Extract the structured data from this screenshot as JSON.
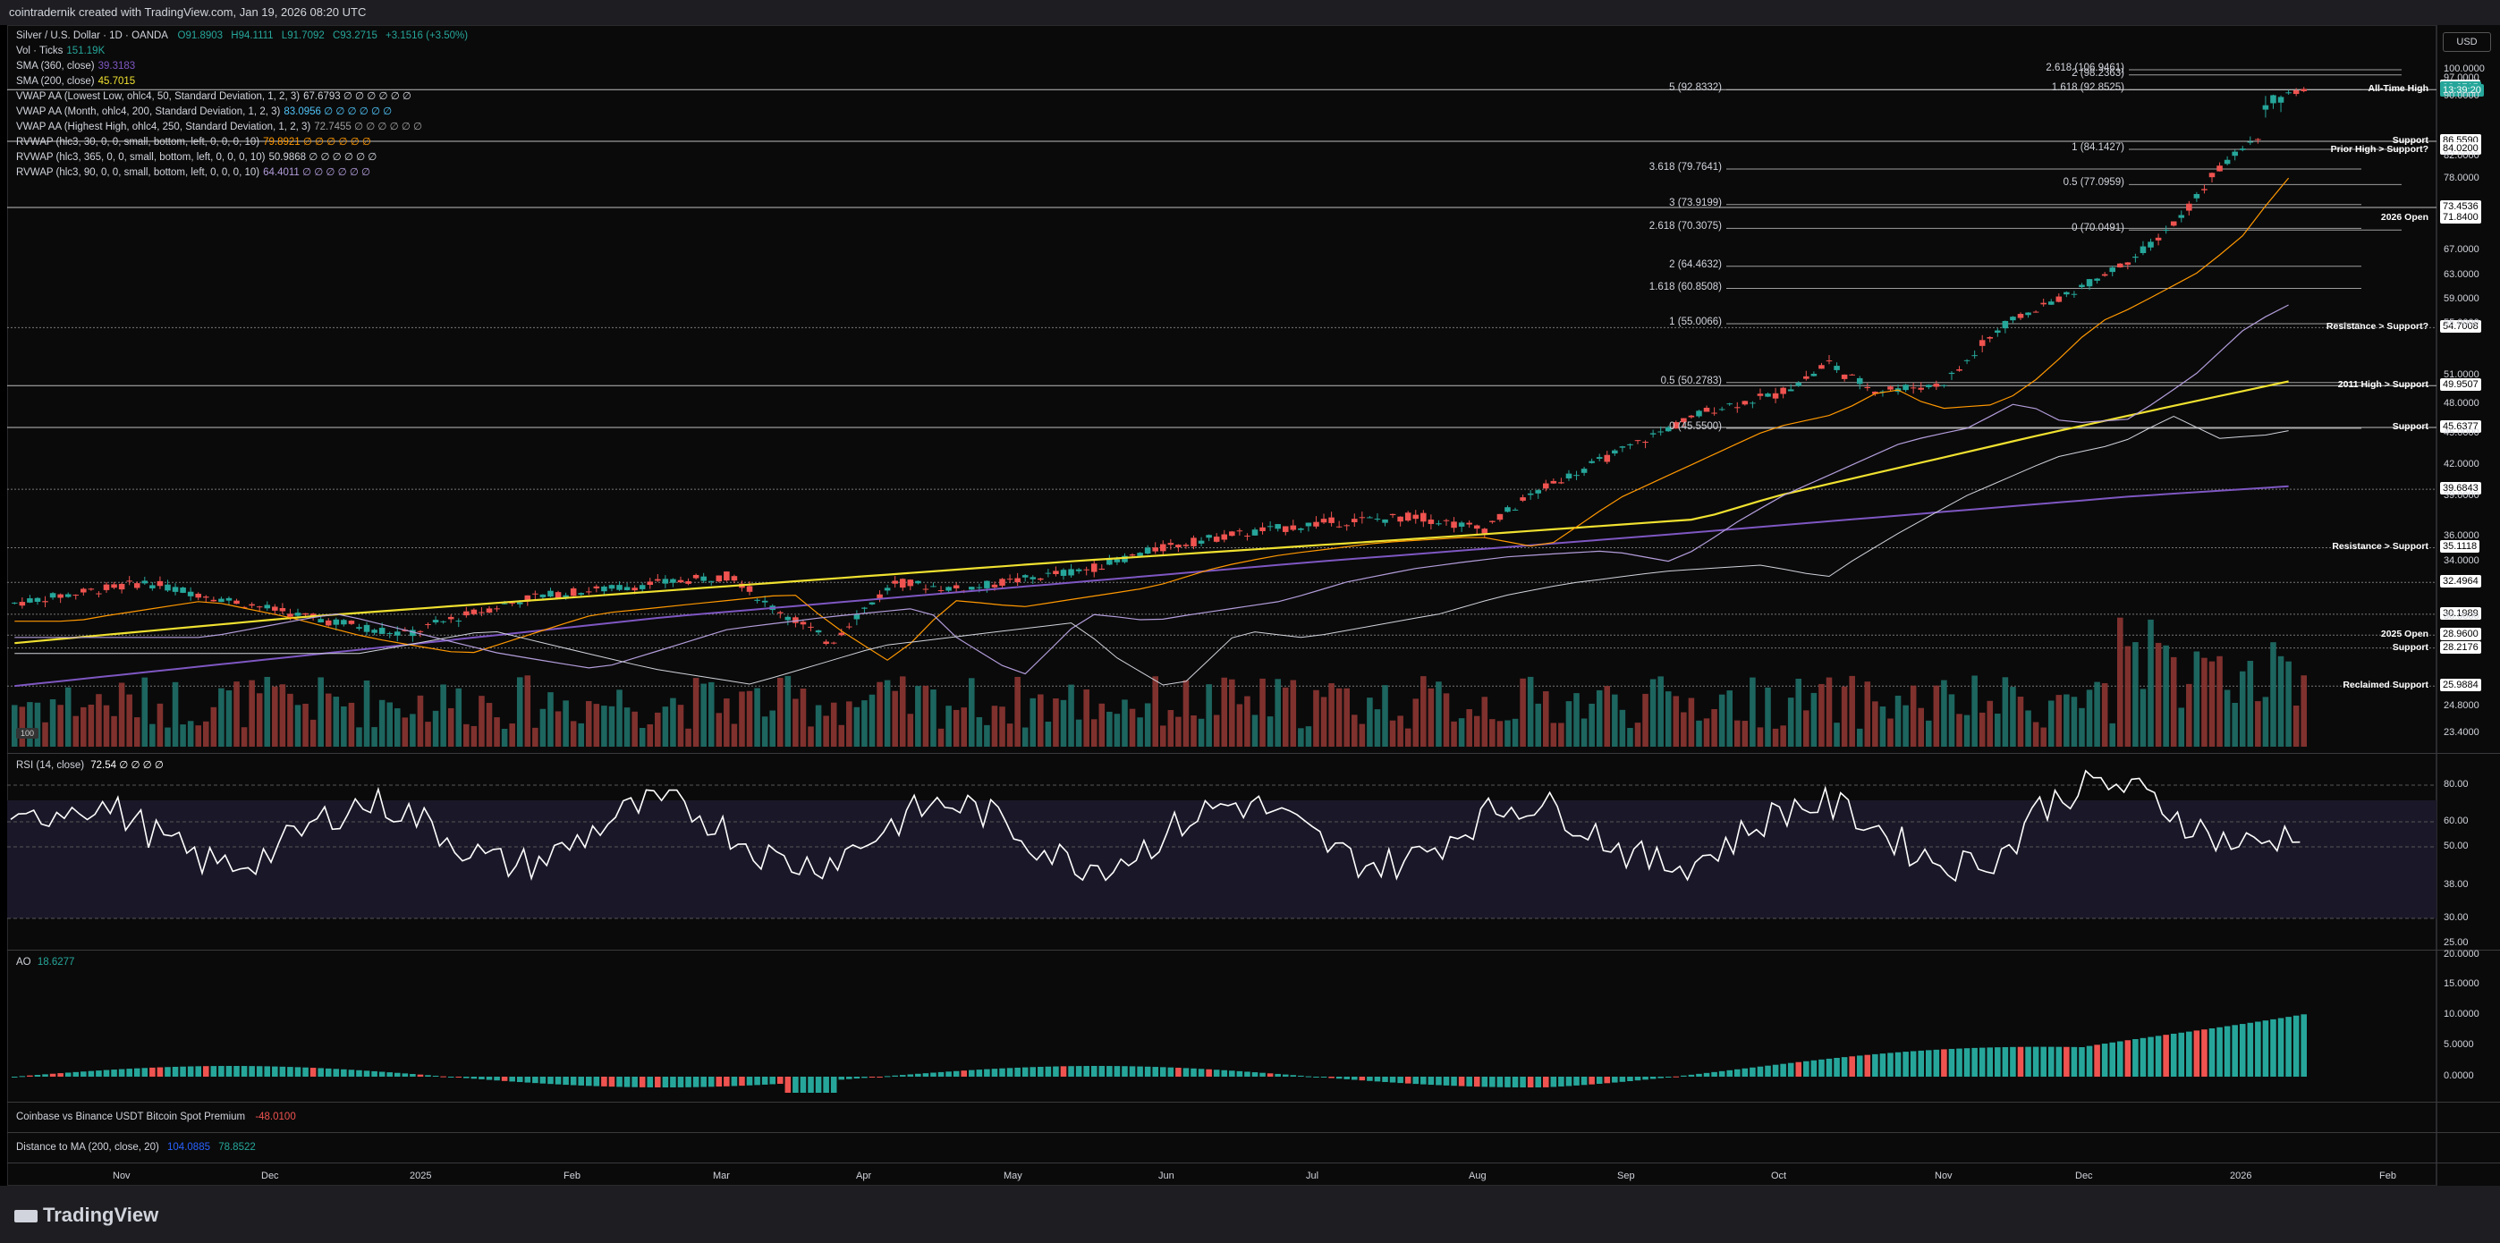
{
  "header": {
    "title": "cointradernik created with TradingView.com, Jan 19, 2026 08:20 UTC"
  },
  "symbol": {
    "name": "Silver / U.S. Dollar · 1D · OANDA",
    "open": "O91.8903",
    "high": "H94.1111",
    "low": "L91.7092",
    "close": "C93.2715",
    "change": "+3.1516 (+3.50%)"
  },
  "indicators": [
    {
      "label": "Vol · Ticks",
      "value": "151.19K",
      "color": "#26a69a"
    },
    {
      "label": "SMA (360, close)",
      "value": "39.3183",
      "color": "#7e57c2"
    },
    {
      "label": "SMA (200, close)",
      "value": "45.7015",
      "color": "#f0e130"
    },
    {
      "label": "VWAP AA (Lowest Low, ohlc4, 50, Standard Deviation, 1, 2, 3)",
      "value": "67.6793 ∅ ∅ ∅ ∅ ∅ ∅",
      "color": "#d1d4dc"
    },
    {
      "label": "VWAP AA (Month, ohlc4, 200, Standard Deviation, 1, 2, 3)",
      "value": "83.0956 ∅ ∅ ∅ ∅ ∅ ∅",
      "color": "#4fc3f7"
    },
    {
      "label": "VWAP AA (Highest High, ohlc4, 250, Standard Deviation, 1, 2, 3)",
      "value": "72.7455 ∅ ∅ ∅ ∅ ∅ ∅",
      "color": "#9e9e9e"
    },
    {
      "label": "RVWAP (hlc3, 30, 0, 0, small, bottom, left, 0, 0, 0, 10)",
      "value": "79.8921 ∅ ∅ ∅ ∅ ∅ ∅",
      "color": "#ff9800"
    },
    {
      "label": "RVWAP (hlc3, 365, 0, 0, small, bottom, left, 0, 0, 0, 10)",
      "value": "50.9868 ∅ ∅ ∅ ∅ ∅ ∅",
      "color": "#d1d4dc"
    },
    {
      "label": "RVWAP (hlc3, 90, 0, 0, small, bottom, left, 0, 0, 0, 10)",
      "value": "64.4011 ∅ ∅ ∅ ∅ ∅ ∅",
      "color": "#b39ddb"
    }
  ],
  "fib_levels": [
    {
      "label": "2.618 (106.9461)",
      "price": 106.9461
    },
    {
      "label": "2 (98.2363)",
      "price": 98.2363
    },
    {
      "label": "1.618 (92.8525)",
      "price": 92.8525
    },
    {
      "label": "1 (84.1427)",
      "price": 84.1427
    },
    {
      "label": "0.5 (77.0959)",
      "price": 77.0959
    },
    {
      "label": "0 (70.0491)",
      "price": 70.0491
    },
    {
      "label": "5 (92.8332)",
      "price": 92.8332
    },
    {
      "label": "3.618 (79.7641)",
      "price": 79.7641
    },
    {
      "label": "3 (73.9199)",
      "price": 73.9199
    },
    {
      "label": "2.618 (70.3075)",
      "price": 70.3075
    },
    {
      "label": "2 (64.4632)",
      "price": 64.4632
    },
    {
      "label": "1.618 (60.8508)",
      "price": 60.8508
    },
    {
      "label": "1 (55.0066)",
      "price": 55.0066
    },
    {
      "label": "0.5 (50.2783)",
      "price": 50.2783
    },
    {
      "label": "0 (45.5500)",
      "price": 45.55
    }
  ],
  "annotations": [
    {
      "text": "All-Time High",
      "price": 92.9
    },
    {
      "text": "Support",
      "price": 86.55
    },
    {
      "text": "Prior High > Support?",
      "price": 84.0
    },
    {
      "text": "2026 Open",
      "price": 71.84
    },
    {
      "text": "Resistance > Support?",
      "price": 54.7
    },
    {
      "text": "2011 High > Support",
      "price": 49.95
    },
    {
      "text": "Support",
      "price": 45.63
    },
    {
      "text": "Resistance > Support",
      "price": 35.11
    },
    {
      "text": "2025 Open",
      "price": 28.96
    },
    {
      "text": "Support",
      "price": 28.22
    },
    {
      "text": "Reclaimed Support",
      "price": 25.98
    }
  ],
  "price_axis": {
    "currency": "USD",
    "ticks": [
      "100.0000",
      "97.0000",
      "90.0000",
      "82.0000",
      "78.0000",
      "67.0000",
      "63.0000",
      "59.0000",
      "55.0000",
      "51.0000",
      "48.0000",
      "45.0000",
      "42.0000",
      "39.0000",
      "36.0000",
      "34.0000",
      "30.0000",
      "24.8000",
      "23.4000"
    ],
    "labels": [
      {
        "text": "94.1100",
        "price": 94.11,
        "bg": "#ffffff",
        "fg": "#000"
      },
      {
        "text": "93.2715",
        "price": 93.27,
        "bg": "#26a69a",
        "fg": "#fff"
      },
      {
        "text": "13:39:20",
        "price": 92.4,
        "bg": "#26a69a",
        "fg": "#fff"
      },
      {
        "text": "86.5590",
        "price": 86.56,
        "bg": "#ffffff",
        "fg": "#000"
      },
      {
        "text": "84.0200",
        "price": 84.02,
        "bg": "#ffffff",
        "fg": "#000"
      },
      {
        "text": "73.4536",
        "price": 73.45,
        "bg": "#ffffff",
        "fg": "#000"
      },
      {
        "text": "71.8400",
        "price": 71.84,
        "bg": "#ffffff",
        "fg": "#000"
      },
      {
        "text": "54.7008",
        "price": 54.7,
        "bg": "#ffffff",
        "fg": "#000"
      },
      {
        "text": "49.9507",
        "price": 49.95,
        "bg": "#ffffff",
        "fg": "#000"
      },
      {
        "text": "45.6377",
        "price": 45.64,
        "bg": "#ffffff",
        "fg": "#000"
      },
      {
        "text": "39.6843",
        "price": 39.68,
        "bg": "#ffffff",
        "fg": "#000"
      },
      {
        "text": "35.1118",
        "price": 35.11,
        "bg": "#ffffff",
        "fg": "#000"
      },
      {
        "text": "32.4964",
        "price": 32.5,
        "bg": "#ffffff",
        "fg": "#000"
      },
      {
        "text": "30.1989",
        "price": 30.2,
        "bg": "#ffffff",
        "fg": "#000"
      },
      {
        "text": "28.9600",
        "price": 28.96,
        "bg": "#ffffff",
        "fg": "#000"
      },
      {
        "text": "28.2176",
        "price": 28.22,
        "bg": "#ffffff",
        "fg": "#000"
      },
      {
        "text": "25.9884",
        "price": 25.99,
        "bg": "#ffffff",
        "fg": "#000"
      }
    ]
  },
  "rsi": {
    "label": "RSI (14, close)",
    "value": "72.54 ∅ ∅ ∅ ∅",
    "ticks": [
      "80.00",
      "60.00",
      "50.00",
      "38.00",
      "30.00",
      "25.00"
    ]
  },
  "ao": {
    "label": "AO",
    "value": "18.6277",
    "ticks": [
      "20.0000",
      "15.0000",
      "10.0000",
      "5.0000",
      "0.0000"
    ]
  },
  "premium": {
    "label": "Coinbase vs Binance USDT Bitcoin Spot Premium",
    "value": "-48.0100"
  },
  "distance": {
    "label": "Distance to MA (200, close, 20)",
    "value1": "104.0885",
    "value2": "78.8522"
  },
  "time_axis": [
    "Nov",
    "Dec",
    "2025",
    "Feb",
    "Mar",
    "Apr",
    "May",
    "Jun",
    "Jul",
    "Aug",
    "Sep",
    "Oct",
    "Nov",
    "Dec",
    "2026",
    "Feb"
  ],
  "volume_badge": "100",
  "footer": {
    "brand": "TradingView"
  },
  "colors": {
    "up": "#26a69a",
    "down": "#ef5350",
    "sma200": "#f0e130",
    "sma360": "#7e57c2",
    "rvwap30": "#ff9800"
  }
}
